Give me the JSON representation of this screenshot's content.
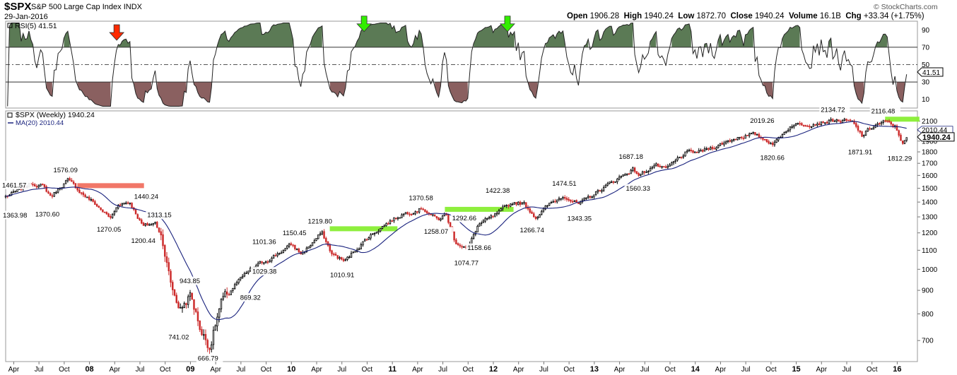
{
  "header": {
    "ticker": "$SPX",
    "name": "S&P 500 Large Cap Index",
    "exchange": "INDX",
    "date": "29-Jan-2016",
    "brand": "© StockCharts.com",
    "quote": {
      "open_label": "Open",
      "open": "1906.28",
      "high_label": "High",
      "high": "1940.24",
      "low_label": "Low",
      "low": "1872.70",
      "close_label": "Close",
      "close": "1940.24",
      "volume_label": "Volume",
      "volume": "16.1B",
      "chg_label": "Chg",
      "chg": "+33.34 (+1.75%)"
    }
  },
  "chart_data": [
    {
      "type": "line",
      "panel": "rsi",
      "legend_label": "RSI(5) 41.51",
      "last_value_label": "41.51",
      "ylim": [
        0,
        100
      ],
      "yticks": [
        10,
        30,
        50,
        70,
        90
      ],
      "thresholds": {
        "overbought": 70,
        "oversold": 30,
        "mid": 50
      },
      "colors": {
        "line": "#222222",
        "overbought_fill": "#5b7a55",
        "oversold_fill": "#8a6060"
      },
      "arrows": [
        {
          "x": 2008.27,
          "y": 78,
          "color": "#ff2a00",
          "direction": "down"
        },
        {
          "x": 2010.72,
          "y": 88,
          "color": "#33ee00",
          "direction": "down"
        },
        {
          "x": 2012.14,
          "y": 88,
          "color": "#33ee00",
          "direction": "down"
        }
      ]
    },
    {
      "type": "candlestick",
      "panel": "price",
      "legend_label": "$SPX (Weekly) 1940.24",
      "ma_legend_label": "MA(20) 2010.44",
      "ma_last_label": "2010.44",
      "last_price_label": "1940.24",
      "scale": "log",
      "ylim": [
        630,
        2210
      ],
      "yticks": [
        700,
        800,
        900,
        1000,
        1100,
        1200,
        1300,
        1400,
        1500,
        1600,
        1700,
        1800,
        1900,
        2000,
        2100,
        2200
      ],
      "colors": {
        "up": "#000000",
        "down": "#cc2b2b",
        "ma": "#1a237e"
      },
      "xlim": [
        2007.17,
        2016.2
      ],
      "x_ticks": [
        {
          "x": 2007.25,
          "label": "Apr"
        },
        {
          "x": 2007.5,
          "label": "Jul"
        },
        {
          "x": 2007.75,
          "label": "Oct"
        },
        {
          "x": 2008.0,
          "label": "08"
        },
        {
          "x": 2008.25,
          "label": "Apr"
        },
        {
          "x": 2008.5,
          "label": "Jul"
        },
        {
          "x": 2008.75,
          "label": "Oct"
        },
        {
          "x": 2009.0,
          "label": "09"
        },
        {
          "x": 2009.25,
          "label": "Apr"
        },
        {
          "x": 2009.5,
          "label": "Jul"
        },
        {
          "x": 2009.75,
          "label": "Oct"
        },
        {
          "x": 2010.0,
          "label": "10"
        },
        {
          "x": 2010.25,
          "label": "Apr"
        },
        {
          "x": 2010.5,
          "label": "Jul"
        },
        {
          "x": 2010.75,
          "label": "Oct"
        },
        {
          "x": 2011.0,
          "label": "11"
        },
        {
          "x": 2011.25,
          "label": "Apr"
        },
        {
          "x": 2011.5,
          "label": "Jul"
        },
        {
          "x": 2011.75,
          "label": "Oct"
        },
        {
          "x": 2012.0,
          "label": "12"
        },
        {
          "x": 2012.25,
          "label": "Apr"
        },
        {
          "x": 2012.5,
          "label": "Jul"
        },
        {
          "x": 2012.75,
          "label": "Oct"
        },
        {
          "x": 2013.0,
          "label": "13"
        },
        {
          "x": 2013.25,
          "label": "Apr"
        },
        {
          "x": 2013.5,
          "label": "Jul"
        },
        {
          "x": 2013.75,
          "label": "Oct"
        },
        {
          "x": 2014.0,
          "label": "14"
        },
        {
          "x": 2014.25,
          "label": "Apr"
        },
        {
          "x": 2014.5,
          "label": "Jul"
        },
        {
          "x": 2014.75,
          "label": "Oct"
        },
        {
          "x": 2015.0,
          "label": "15"
        },
        {
          "x": 2015.25,
          "label": "Apr"
        },
        {
          "x": 2015.5,
          "label": "Jul"
        },
        {
          "x": 2015.75,
          "label": "Oct"
        },
        {
          "x": 2016.0,
          "label": "16"
        }
      ],
      "anchors": [
        [
          2007.17,
          1440
        ],
        [
          2007.3,
          1480
        ],
        [
          2007.42,
          1540
        ],
        [
          2007.53,
          1520
        ],
        [
          2007.62,
          1440
        ],
        [
          2007.78,
          1565
        ],
        [
          2007.9,
          1480
        ],
        [
          2008.05,
          1390
        ],
        [
          2008.21,
          1290
        ],
        [
          2008.29,
          1390
        ],
        [
          2008.4,
          1400
        ],
        [
          2008.53,
          1240
        ],
        [
          2008.65,
          1260
        ],
        [
          2008.72,
          1180
        ],
        [
          2008.8,
          940
        ],
        [
          2008.85,
          870
        ],
        [
          2008.9,
          820
        ],
        [
          2009.0,
          880
        ],
        [
          2009.11,
          730
        ],
        [
          2009.19,
          680
        ],
        [
          2009.3,
          840
        ],
        [
          2009.45,
          930
        ],
        [
          2009.6,
          1000
        ],
        [
          2009.8,
          1060
        ],
        [
          2010.0,
          1130
        ],
        [
          2010.1,
          1080
        ],
        [
          2010.3,
          1200
        ],
        [
          2010.4,
          1080
        ],
        [
          2010.53,
          1040
        ],
        [
          2010.63,
          1100
        ],
        [
          2010.75,
          1170
        ],
        [
          2010.9,
          1240
        ],
        [
          2011.0,
          1280
        ],
        [
          2011.1,
          1320
        ],
        [
          2011.3,
          1360
        ],
        [
          2011.45,
          1280
        ],
        [
          2011.53,
          1320
        ],
        [
          2011.62,
          1150
        ],
        [
          2011.75,
          1110
        ],
        [
          2011.85,
          1250
        ],
        [
          2012.0,
          1300
        ],
        [
          2012.2,
          1400
        ],
        [
          2012.3,
          1390
        ],
        [
          2012.42,
          1300
        ],
        [
          2012.55,
          1380
        ],
        [
          2012.7,
          1450
        ],
        [
          2012.85,
          1380
        ],
        [
          2013.0,
          1460
        ],
        [
          2013.2,
          1560
        ],
        [
          2013.38,
          1650
        ],
        [
          2013.45,
          1600
        ],
        [
          2013.6,
          1690
        ],
        [
          2013.7,
          1640
        ],
        [
          2013.9,
          1790
        ],
        [
          2014.05,
          1800
        ],
        [
          2014.25,
          1870
        ],
        [
          2014.45,
          1950
        ],
        [
          2014.58,
          1960
        ],
        [
          2014.78,
          1880
        ],
        [
          2014.95,
          2060
        ],
        [
          2015.1,
          2070
        ],
        [
          2015.38,
          2110
        ],
        [
          2015.55,
          2090
        ],
        [
          2015.65,
          1950
        ],
        [
          2015.78,
          2060
        ],
        [
          2015.88,
          2090
        ],
        [
          2015.98,
          2040
        ],
        [
          2016.05,
          1890
        ],
        [
          2016.1,
          1925
        ]
      ],
      "annotations": [
        {
          "x": 2007.17,
          "y": 1461.57,
          "label": "1461.57",
          "pos": "above"
        },
        {
          "x": 2007.28,
          "y": 1363.98,
          "label": "1363.98",
          "pos": "below"
        },
        {
          "x": 2007.6,
          "y": 1370.6,
          "label": "1370.60",
          "pos": "below"
        },
        {
          "x": 2007.78,
          "y": 1576.09,
          "label": "1576.09",
          "pos": "above"
        },
        {
          "x": 2008.21,
          "y": 1270.05,
          "label": "1270.05",
          "pos": "below"
        },
        {
          "x": 2008.4,
          "y": 1440.24,
          "label": "1440.24",
          "pos": "right"
        },
        {
          "x": 2008.53,
          "y": 1313.15,
          "label": "1313.15",
          "pos": "right"
        },
        {
          "x": 2008.55,
          "y": 1200.44,
          "label": "1200.44",
          "pos": "below"
        },
        {
          "x": 2008.85,
          "y": 943.85,
          "label": "943.85",
          "pos": "right"
        },
        {
          "x": 2008.9,
          "y": 741.02,
          "label": "741.02",
          "pos": "below"
        },
        {
          "x": 2009.19,
          "y": 666.79,
          "label": "666.79",
          "pos": "below"
        },
        {
          "x": 2009.45,
          "y": 869.32,
          "label": "869.32",
          "pos": "right"
        },
        {
          "x": 2009.75,
          "y": 1029.38,
          "label": "1029.38",
          "pos": "below"
        },
        {
          "x": 2009.75,
          "y": 1101.36,
          "label": "1101.36",
          "pos": "above"
        },
        {
          "x": 2010.05,
          "y": 1150.45,
          "label": "1150.45",
          "pos": "above"
        },
        {
          "x": 2010.3,
          "y": 1219.8,
          "label": "1219.80",
          "pos": "above"
        },
        {
          "x": 2010.52,
          "y": 1010.91,
          "label": "1010.91",
          "pos": "below"
        },
        {
          "x": 2011.3,
          "y": 1370.58,
          "label": "1370.58",
          "pos": "above"
        },
        {
          "x": 2011.45,
          "y": 1258.07,
          "label": "1258.07",
          "pos": "below"
        },
        {
          "x": 2011.55,
          "y": 1292.66,
          "label": "1292.66",
          "pos": "right"
        },
        {
          "x": 2011.75,
          "y": 1074.77,
          "label": "1074.77",
          "pos": "below"
        },
        {
          "x": 2011.88,
          "y": 1158.66,
          "label": "1158.66",
          "pos": "below"
        },
        {
          "x": 2012.06,
          "y": 1422.38,
          "label": "1422.38",
          "pos": "above"
        },
        {
          "x": 2012.4,
          "y": 1266.74,
          "label": "1266.74",
          "pos": "below"
        },
        {
          "x": 2012.72,
          "y": 1474.51,
          "label": "1474.51",
          "pos": "above"
        },
        {
          "x": 2012.87,
          "y": 1343.35,
          "label": "1343.35",
          "pos": "below"
        },
        {
          "x": 2013.38,
          "y": 1687.18,
          "label": "1687.18",
          "pos": "above"
        },
        {
          "x": 2013.45,
          "y": 1560.33,
          "label": "1560.33",
          "pos": "below"
        },
        {
          "x": 2014.68,
          "y": 2019.26,
          "label": "2019.26",
          "pos": "above"
        },
        {
          "x": 2014.78,
          "y": 1820.66,
          "label": "1820.66",
          "pos": "below"
        },
        {
          "x": 2015.38,
          "y": 2134.72,
          "label": "2134.72",
          "pos": "above"
        },
        {
          "x": 2015.65,
          "y": 1871.91,
          "label": "1871.91",
          "pos": "below"
        },
        {
          "x": 2015.88,
          "y": 2116.48,
          "label": "2116.48",
          "pos": "above"
        },
        {
          "x": 2016.05,
          "y": 1812.29,
          "label": "1812.29",
          "pos": "below"
        }
      ],
      "zones": [
        {
          "x0": 2007.88,
          "x1": 2008.54,
          "y": 1520,
          "color": "#f07060"
        },
        {
          "x0": 2010.38,
          "x1": 2011.05,
          "y": 1225,
          "color": "#88ee33"
        },
        {
          "x0": 2011.52,
          "x1": 2012.2,
          "y": 1350,
          "color": "#88ee33"
        },
        {
          "x0": 2015.88,
          "x1": 2016.22,
          "y": 2120,
          "color": "#88ee33"
        }
      ]
    }
  ]
}
